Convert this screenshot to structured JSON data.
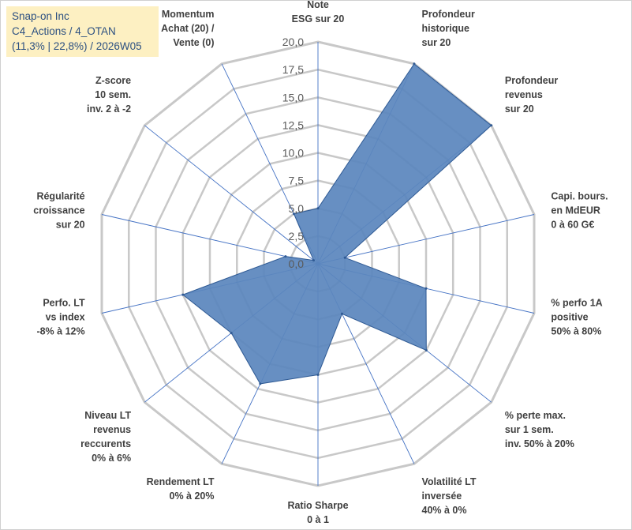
{
  "header": {
    "line1": "Snap-on Inc",
    "line2": "C4_Actions / 4_OTAN",
    "line3": "(11,3% | 22,8%) / 2026W05"
  },
  "colors": {
    "fill": "#5b86bd",
    "stroke": "#2f5a94",
    "grid": "#c8c8c8",
    "spoke": "#4472c4",
    "title_bg": "#fdf0c2",
    "title_text": "#2b4f81"
  },
  "chart_data": {
    "type": "radar",
    "rmin": 0,
    "rmax": 20,
    "tick_step": 2.5,
    "ticks": [
      "0,0",
      "2,5",
      "5,0",
      "7,5",
      "10,0",
      "12,5",
      "15,0",
      "17,5",
      "20,0"
    ],
    "axes": [
      {
        "label": [
          "Note",
          "ESG sur 20"
        ],
        "value": 5.0
      },
      {
        "label": [
          "Profondeur",
          "historique",
          "sur 20"
        ],
        "value": 20.0
      },
      {
        "label": [
          "Profondeur",
          "revenus",
          "sur 20"
        ],
        "value": 20.0
      },
      {
        "label": [
          "Capi. bours.",
          "en MdEUR",
          "0 à 60 G€"
        ],
        "value": 2.5
      },
      {
        "label": [
          "% perfo 1A",
          "positive",
          "50% à 80%"
        ],
        "value": 10.0
      },
      {
        "label": [
          "% perte max.",
          "sur 1 sem.",
          "inv. 50% à 20%"
        ],
        "value": 12.5
      },
      {
        "label": [
          "Volatilité LT",
          "inversée",
          "40% à 0%"
        ],
        "value": 5.0
      },
      {
        "label": [
          "Ratio Sharpe",
          "0 à 1"
        ],
        "value": 10.0
      },
      {
        "label": [
          "Rendement LT",
          "0% à 20%"
        ],
        "value": 12.0
      },
      {
        "label": [
          "Niveau LT",
          "revenus",
          "reccurents",
          "0% à 6%"
        ],
        "value": 10.0
      },
      {
        "label": [
          "Perfo. LT",
          "vs index",
          "-8% à 12%"
        ],
        "value": 12.5
      },
      {
        "label": [
          "Régularité",
          "croissance",
          "sur 20"
        ],
        "value": 3.0
      },
      {
        "label": [
          "Z-score",
          "10 sem.",
          "inv. 2 à -2"
        ],
        "value": 0.5
      },
      {
        "label": [
          "Momentum",
          "Achat (20) /",
          "Vente (0)"
        ],
        "value": 5.0
      }
    ]
  }
}
